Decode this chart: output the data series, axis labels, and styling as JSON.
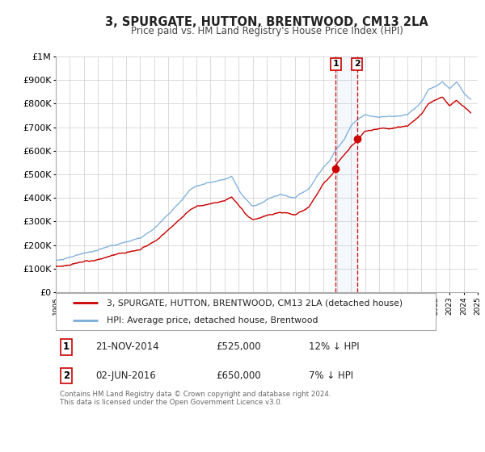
{
  "title": "3, SPURGATE, HUTTON, BRENTWOOD, CM13 2LA",
  "subtitle": "Price paid vs. HM Land Registry's House Price Index (HPI)",
  "legend_label_red": "3, SPURGATE, HUTTON, BRENTWOOD, CM13 2LA (detached house)",
  "legend_label_blue": "HPI: Average price, detached house, Brentwood",
  "transaction1_label": "1",
  "transaction1_date": "21-NOV-2014",
  "transaction1_price": "£525,000",
  "transaction1_hpi": "12% ↓ HPI",
  "transaction1_year": 2014.9,
  "transaction1_value": 525000,
  "transaction2_label": "2",
  "transaction2_date": "02-JUN-2016",
  "transaction2_price": "£650,000",
  "transaction2_hpi": "7% ↓ HPI",
  "transaction2_year": 2016.42,
  "transaction2_value": 650000,
  "footer_line1": "Contains HM Land Registry data © Crown copyright and database right 2024.",
  "footer_line2": "This data is licensed under the Open Government Licence v3.0.",
  "red_color": "#cc0000",
  "blue_color": "#7aabda",
  "vline_color": "#cc0000",
  "background_color": "#ffffff",
  "grid_color": "#cccccc",
  "ylim": [
    0,
    1000000
  ],
  "xlim_start": 1995,
  "xlim_end": 2025,
  "yticks": [
    0,
    100000,
    200000,
    300000,
    400000,
    500000,
    600000,
    700000,
    800000,
    900000,
    1000000
  ],
  "ytick_labels": [
    "£0",
    "£100K",
    "£200K",
    "£300K",
    "£400K",
    "£500K",
    "£600K",
    "£700K",
    "£800K",
    "£900K",
    "£1M"
  ],
  "xticks": [
    1995,
    1996,
    1997,
    1998,
    1999,
    2000,
    2001,
    2002,
    2003,
    2004,
    2005,
    2006,
    2007,
    2008,
    2009,
    2010,
    2011,
    2012,
    2013,
    2014,
    2015,
    2016,
    2017,
    2018,
    2019,
    2020,
    2021,
    2022,
    2023,
    2024,
    2025
  ],
  "hpi_keypoints_x": [
    1995,
    1995.5,
    1996,
    1997,
    1998,
    1999,
    2000,
    2001,
    2002,
    2003,
    2004,
    2004.5,
    2005,
    2006,
    2007,
    2007.5,
    2008,
    2008.5,
    2009,
    2009.5,
    2010,
    2011,
    2012,
    2013,
    2014,
    2014.5,
    2015,
    2015.5,
    2016,
    2016.5,
    2017,
    2017.5,
    2018,
    2019,
    2020,
    2020.5,
    2021,
    2021.5,
    2022,
    2022.5,
    2023,
    2023.5,
    2024,
    2024.5
  ],
  "hpi_keypoints_y": [
    135000,
    138000,
    145000,
    160000,
    175000,
    190000,
    205000,
    225000,
    265000,
    320000,
    380000,
    420000,
    440000,
    455000,
    470000,
    480000,
    430000,
    390000,
    360000,
    370000,
    385000,
    400000,
    390000,
    430000,
    520000,
    555000,
    610000,
    650000,
    710000,
    740000,
    760000,
    755000,
    750000,
    755000,
    760000,
    790000,
    820000,
    870000,
    880000,
    900000,
    870000,
    895000,
    850000,
    820000
  ],
  "red_keypoints_x": [
    1995,
    1995.5,
    1996,
    1997,
    1998,
    1999,
    2000,
    2001,
    2002,
    2003,
    2004,
    2004.5,
    2005,
    2006,
    2007,
    2007.5,
    2008,
    2008.5,
    2009,
    2009.5,
    2010,
    2011,
    2012,
    2013,
    2014,
    2014.9,
    2015,
    2015.5,
    2016,
    2016.42,
    2017,
    2017.5,
    2018,
    2019,
    2020,
    2020.5,
    2021,
    2021.5,
    2022,
    2022.5,
    2023,
    2023.5,
    2024,
    2024.5
  ],
  "red_keypoints_y": [
    110000,
    112000,
    118000,
    130000,
    142000,
    155000,
    165000,
    180000,
    215000,
    255000,
    310000,
    340000,
    355000,
    370000,
    385000,
    400000,
    365000,
    330000,
    305000,
    310000,
    320000,
    335000,
    325000,
    360000,
    460000,
    525000,
    555000,
    590000,
    630000,
    650000,
    690000,
    695000,
    700000,
    700000,
    705000,
    730000,
    760000,
    800000,
    820000,
    835000,
    800000,
    820000,
    790000,
    760000
  ]
}
